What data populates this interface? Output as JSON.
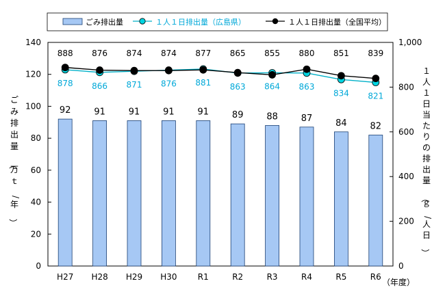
{
  "chart_data": {
    "type": "bar",
    "categories": [
      "H27",
      "H28",
      "H29",
      "H30",
      "R1",
      "R2",
      "R3",
      "R4",
      "R5",
      "R6"
    ],
    "series": [
      {
        "name": "ごみ排出量",
        "type": "bar",
        "axis": "left",
        "values": [
          92,
          91,
          91,
          91,
          91,
          89,
          88,
          87,
          84,
          82
        ],
        "color": "#a6c8f4"
      },
      {
        "name": "１人１日排出量（広島県）",
        "type": "line",
        "axis": "right",
        "values": [
          878,
          866,
          871,
          876,
          881,
          863,
          864,
          863,
          834,
          821
        ],
        "color": "#00b0c8",
        "label_color": "#00a8d8"
      },
      {
        "name": "１人１日排出量（全国平均）",
        "type": "line",
        "axis": "right",
        "values": [
          888,
          876,
          874,
          874,
          877,
          865,
          855,
          880,
          851,
          839
        ],
        "color": "#000000"
      }
    ],
    "ylabel": "ごみ排出量（万ｔ/年）",
    "y2label": "１人１日当たりの排出量（ｇ/人日）",
    "xlabel": "（年度）",
    "ylim": [
      0,
      140
    ],
    "y2lim": [
      0,
      1000
    ],
    "yticks": [
      "0",
      "20",
      "40",
      "60",
      "80",
      "100",
      "120",
      "140"
    ],
    "y2ticks": [
      "0",
      "200",
      "400",
      "600",
      "800",
      "1,000"
    ],
    "legend_position": "top",
    "grid": false
  }
}
